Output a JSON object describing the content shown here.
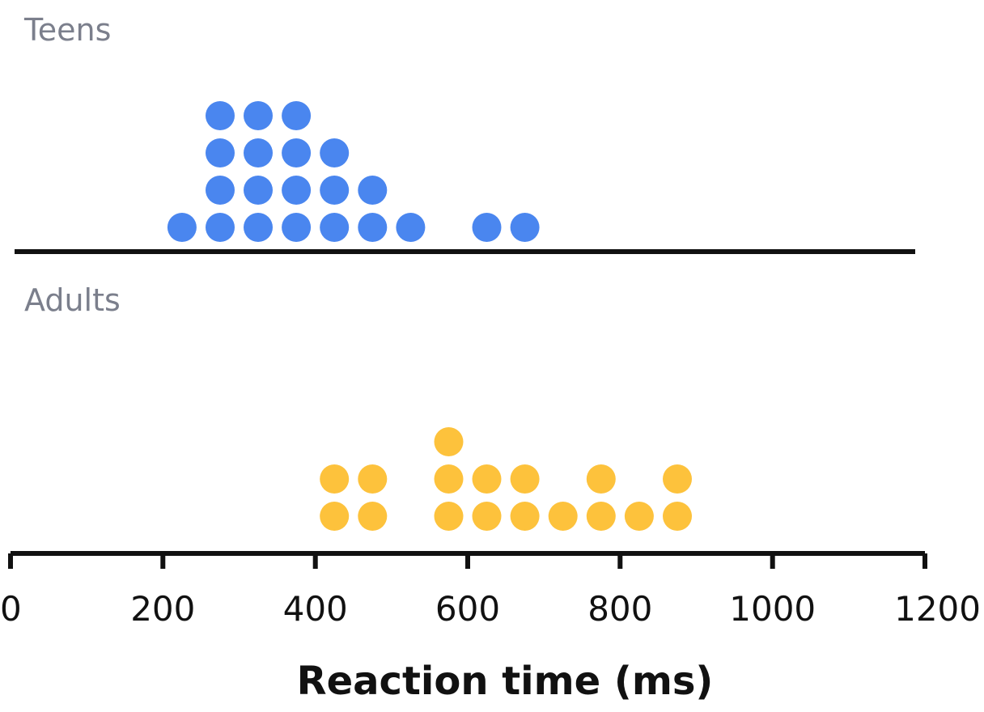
{
  "chart_data": {
    "type": "dot plot",
    "xlabel": "Reaction time (ms)",
    "xlim": [
      0,
      1200
    ],
    "ticks": [
      0,
      200,
      400,
      600,
      800,
      1000,
      1200
    ],
    "tick_labels": [
      "0",
      "200",
      "400",
      "600",
      "800",
      "1000",
      "1200"
    ],
    "bin_width": 50,
    "series": [
      {
        "name": "Teens",
        "color": "#4a86ef",
        "bins": [
          {
            "x": 225,
            "count": 1
          },
          {
            "x": 275,
            "count": 4
          },
          {
            "x": 325,
            "count": 4
          },
          {
            "x": 375,
            "count": 4
          },
          {
            "x": 425,
            "count": 3
          },
          {
            "x": 475,
            "count": 2
          },
          {
            "x": 525,
            "count": 1
          },
          {
            "x": 625,
            "count": 1
          },
          {
            "x": 675,
            "count": 1
          }
        ]
      },
      {
        "name": "Adults",
        "color": "#fdc23c",
        "bins": [
          {
            "x": 425,
            "count": 2
          },
          {
            "x": 475,
            "count": 2
          },
          {
            "x": 575,
            "count": 3
          },
          {
            "x": 625,
            "count": 2
          },
          {
            "x": 675,
            "count": 2
          },
          {
            "x": 725,
            "count": 1
          },
          {
            "x": 775,
            "count": 2
          },
          {
            "x": 825,
            "count": 1
          },
          {
            "x": 875,
            "count": 2
          }
        ]
      }
    ]
  }
}
